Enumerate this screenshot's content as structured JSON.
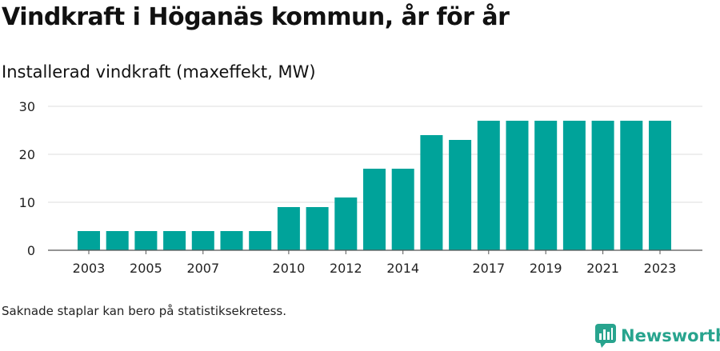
{
  "header": {
    "title": "Vindkraft i Höganäs kommun, år för år",
    "subtitle": "Installerad vindkraft (maxeffekt, MW)"
  },
  "footnote": "Saknade staplar kan bero på statistiksekretess.",
  "brand": {
    "name": "Newsworthy",
    "color": "#28a48e",
    "icon": "bar-chart-bubble-icon"
  },
  "chart_data": {
    "type": "bar",
    "title": "Vindkraft i Höganäs kommun, år för år",
    "subtitle": "Installerad vindkraft (maxeffekt, MW)",
    "xlabel": "",
    "ylabel": "",
    "categories": [
      "2003",
      "2004",
      "2005",
      "2006",
      "2007",
      "2008",
      "2009",
      "2010",
      "2011",
      "2012",
      "2013",
      "2014",
      "2015",
      "2016",
      "2017",
      "2018",
      "2019",
      "2020",
      "2021",
      "2022",
      "2023"
    ],
    "values": [
      4,
      4,
      4,
      4,
      4,
      4,
      4,
      9,
      9,
      11,
      17,
      17,
      24,
      23,
      27,
      27,
      27,
      27,
      27,
      27,
      27
    ],
    "x_tick_labels": [
      "2003",
      "2005",
      "2007",
      "2010",
      "2012",
      "2014",
      "2017",
      "2019",
      "2021",
      "2023"
    ],
    "y_ticks": [
      0,
      10,
      20,
      30
    ],
    "ylim": [
      0,
      30
    ],
    "grid": true,
    "bar_color": "#00a39a"
  }
}
